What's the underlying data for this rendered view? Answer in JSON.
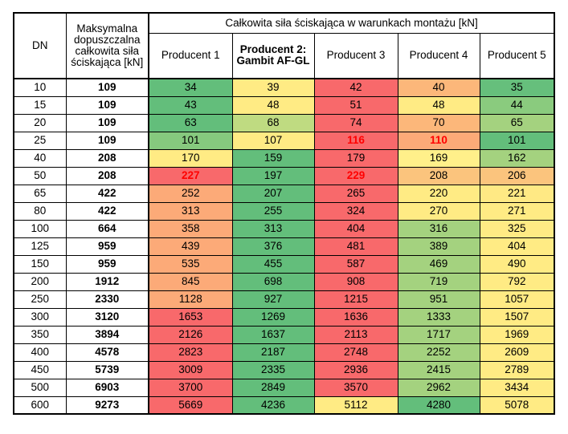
{
  "table": {
    "header": {
      "dn": "DN",
      "max": "Maksymalna\ndopuszczalna\ncałkowita siła\nściskająca [kN]",
      "group": "Całkowita siła ściskająca w warunkach montażu [kN]",
      "producers": [
        {
          "label": "Producent 1",
          "bold": false
        },
        {
          "label": "Producent 2:\nGambit AF-GL",
          "bold": true
        },
        {
          "label": "Producent 3",
          "bold": false
        },
        {
          "label": "Producent 4",
          "bold": false
        },
        {
          "label": "Producent 5",
          "bold": false
        }
      ]
    },
    "rows": [
      {
        "dn": "10",
        "max": "109",
        "values": [
          "34",
          "39",
          "42",
          "40",
          "35"
        ]
      },
      {
        "dn": "15",
        "max": "109",
        "values": [
          "43",
          "48",
          "51",
          "48",
          "44"
        ]
      },
      {
        "dn": "20",
        "max": "109",
        "values": [
          "63",
          "68",
          "74",
          "70",
          "65"
        ]
      },
      {
        "dn": "25",
        "max": "109",
        "values": [
          "101",
          "107",
          "116",
          "110",
          "101"
        ]
      },
      {
        "dn": "40",
        "max": "208",
        "values": [
          "170",
          "159",
          "179",
          "169",
          "162"
        ]
      },
      {
        "dn": "50",
        "max": "208",
        "values": [
          "227",
          "197",
          "229",
          "208",
          "206"
        ]
      },
      {
        "dn": "65",
        "max": "422",
        "values": [
          "252",
          "207",
          "265",
          "220",
          "221"
        ]
      },
      {
        "dn": "80",
        "max": "422",
        "values": [
          "313",
          "255",
          "324",
          "270",
          "271"
        ]
      },
      {
        "dn": "100",
        "max": "664",
        "values": [
          "358",
          "313",
          "404",
          "316",
          "325"
        ]
      },
      {
        "dn": "125",
        "max": "959",
        "values": [
          "439",
          "376",
          "481",
          "389",
          "404"
        ]
      },
      {
        "dn": "150",
        "max": "959",
        "values": [
          "535",
          "455",
          "587",
          "469",
          "490"
        ]
      },
      {
        "dn": "200",
        "max": "1912",
        "values": [
          "845",
          "698",
          "908",
          "719",
          "792"
        ]
      },
      {
        "dn": "250",
        "max": "2330",
        "values": [
          "1128",
          "927",
          "1215",
          "951",
          "1057"
        ]
      },
      {
        "dn": "300",
        "max": "3120",
        "values": [
          "1653",
          "1269",
          "1636",
          "1333",
          "1507"
        ]
      },
      {
        "dn": "350",
        "max": "3894",
        "values": [
          "2126",
          "1637",
          "2113",
          "1717",
          "1969"
        ]
      },
      {
        "dn": "400",
        "max": "4578",
        "values": [
          "2823",
          "2187",
          "2748",
          "2252",
          "2609"
        ]
      },
      {
        "dn": "450",
        "max": "5739",
        "values": [
          "3009",
          "2335",
          "2936",
          "2415",
          "2789"
        ]
      },
      {
        "dn": "500",
        "max": "6903",
        "values": [
          "3700",
          "2849",
          "3570",
          "2962",
          "3434"
        ]
      },
      {
        "dn": "600",
        "max": "9273",
        "values": [
          "5669",
          "4236",
          "5112",
          "4280",
          "5078"
        ]
      }
    ],
    "cell_colors": [
      [
        "#63be7b",
        "#ffeb84",
        "#f8696b",
        "#fcb77a",
        "#66bf7c"
      ],
      [
        "#63be7b",
        "#ffeb84",
        "#f8696b",
        "#ffeb84",
        "#8acb7e"
      ],
      [
        "#63be7b",
        "#bfdb81",
        "#f8696b",
        "#fcb77a",
        "#a4d27f"
      ],
      [
        "#86c97e",
        "#ffeb84",
        "#f8696b",
        "#fcaa78",
        "#63be7b"
      ],
      [
        "#ffeb84",
        "#63be7b",
        "#f8696b",
        "#fff08a",
        "#a4d27f"
      ],
      [
        "#f8696b",
        "#63be7b",
        "#f8696b",
        "#fbc47d",
        "#fbc47d"
      ],
      [
        "#fcaa78",
        "#63be7b",
        "#f8696b",
        "#ffeb84",
        "#ffe984"
      ],
      [
        "#fcaa78",
        "#63be7b",
        "#f8696b",
        "#ffeb84",
        "#ffeb84"
      ],
      [
        "#fcaa78",
        "#63be7b",
        "#f8696b",
        "#a4d27f",
        "#ffeb84"
      ],
      [
        "#fcaa78",
        "#63be7b",
        "#f8696b",
        "#a4d27f",
        "#ffeb84"
      ],
      [
        "#fcaa78",
        "#63be7b",
        "#f8696b",
        "#a4d27f",
        "#ffeb84"
      ],
      [
        "#fcaa78",
        "#63be7b",
        "#f8696b",
        "#a4d27f",
        "#ffeb84"
      ],
      [
        "#fcaa78",
        "#63be7b",
        "#f8696b",
        "#a4d27f",
        "#ffeb84"
      ],
      [
        "#f8696b",
        "#63be7b",
        "#f8696b",
        "#a4d27f",
        "#ffeb84"
      ],
      [
        "#f8696b",
        "#63be7b",
        "#f8696b",
        "#a4d27f",
        "#ffeb84"
      ],
      [
        "#f8696b",
        "#63be7b",
        "#f8696b",
        "#a4d27f",
        "#ffeb84"
      ],
      [
        "#f8696b",
        "#63be7b",
        "#f8696b",
        "#a4d27f",
        "#ffeb84"
      ],
      [
        "#f8696b",
        "#63be7b",
        "#f8696b",
        "#a4d27f",
        "#ffeb84"
      ],
      [
        "#f8696b",
        "#63be7b",
        "#ffeb84",
        "#63be7b",
        "#ffeb84"
      ]
    ],
    "exceed_color": "#ff0000"
  }
}
